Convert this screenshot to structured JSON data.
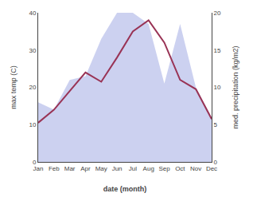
{
  "chart_data": {
    "type": "line",
    "categories": [
      "Jan",
      "Feb",
      "Mar",
      "Apr",
      "May",
      "Jun",
      "Jul",
      "Aug",
      "Sep",
      "Oct",
      "Nov",
      "Dec"
    ],
    "series": [
      {
        "type": "area",
        "axis": "y2",
        "color": "#b0b8e8",
        "values": [
          8.0,
          7.0,
          11.0,
          11.5,
          16.5,
          20.0,
          20.0,
          18.5,
          10.5,
          18.5,
          10.0,
          6.0
        ]
      },
      {
        "type": "line",
        "color": "#993355",
        "values": [
          10.5,
          14.0,
          19.0,
          24.0,
          21.5,
          28.0,
          35.0,
          38.0,
          32.0,
          22.0,
          19.5,
          11.5
        ]
      }
    ],
    "xlabel": "date (month)",
    "ylabel": "max temp (C)",
    "y2label": "med. precipitation (kg/m2)",
    "ylim": [
      0,
      40
    ],
    "yticks": [
      0,
      10,
      20,
      30,
      40
    ],
    "y2lim": [
      0,
      20
    ],
    "y2ticks": [
      0,
      5,
      10,
      15,
      20
    ],
    "grid": false
  }
}
